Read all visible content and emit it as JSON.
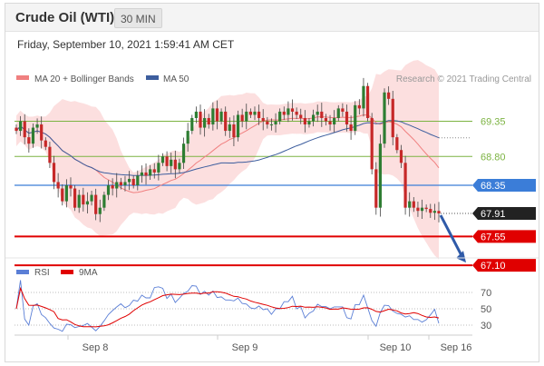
{
  "header": {
    "title": "Crude Oil (WTI)",
    "timeframe": "30 MIN",
    "timestamp": "Friday, September 10, 2021 1:59:41 AM CET"
  },
  "legend": {
    "ma20_label": "MA 20 + Bollinger Bands",
    "ma20_color": "#f08080",
    "ma50_label": "MA 50",
    "ma50_color": "#3d5e9e",
    "credit": "Research © 2021 Trading Central"
  },
  "price_levels": [
    {
      "value": 69.35,
      "label": "69.35",
      "kind": "resistance",
      "color": "#7cb342"
    },
    {
      "value": 68.8,
      "label": "68.80",
      "kind": "resistance",
      "color": "#7cb342"
    },
    {
      "value": 68.35,
      "label": "68.35",
      "kind": "pivot",
      "color": "#3b7dd8"
    },
    {
      "value": 67.91,
      "label": "67.91",
      "kind": "last_price",
      "color": "#222222"
    },
    {
      "value": 67.55,
      "label": "67.55",
      "kind": "support",
      "color": "#e00000"
    },
    {
      "value": 67.1,
      "label": "67.10",
      "kind": "support",
      "color": "#e00000"
    }
  ],
  "rsi_legend": {
    "rsi_label": "RSI",
    "rsi_color": "#5b7fd6",
    "ma_label": "9MA",
    "ma_color": "#e00000"
  },
  "rsi_levels": [
    "70",
    "50",
    "30"
  ],
  "x_axis": [
    "Sep 8",
    "Sep 9",
    "Sep 10",
    "Sep 16"
  ],
  "chart_data": {
    "type": "candlestick",
    "timeframe": "30 MIN",
    "x_labels": [
      "Sep 8",
      "Sep 9",
      "Sep 10",
      "Sep 16"
    ],
    "price_levels": [
      69.35,
      68.8,
      68.35,
      67.91,
      67.55,
      67.1
    ],
    "last_price": 67.91,
    "close": [
      69.2,
      69.35,
      69.1,
      69.0,
      69.25,
      69.3,
      69.05,
      68.95,
      68.7,
      68.4,
      68.3,
      68.1,
      68.35,
      68.3,
      68.0,
      68.2,
      68.05,
      68.1,
      68.2,
      67.9,
      68.0,
      68.2,
      68.35,
      68.3,
      68.4,
      68.35,
      68.4,
      68.45,
      68.35,
      68.5,
      68.55,
      68.5,
      68.6,
      68.55,
      68.7,
      68.8,
      68.65,
      68.75,
      68.6,
      68.7,
      69.0,
      69.2,
      69.4,
      69.5,
      69.25,
      69.4,
      69.3,
      69.55,
      69.35,
      69.5,
      69.2,
      69.3,
      69.1,
      69.45,
      69.35,
      69.5,
      69.45,
      69.5,
      69.4,
      69.35,
      69.3,
      69.3,
      69.35,
      69.5,
      69.45,
      69.55,
      69.5,
      69.45,
      69.4,
      69.3,
      69.35,
      69.45,
      69.5,
      69.4,
      69.35,
      69.3,
      69.4,
      69.55,
      69.5,
      69.3,
      69.2,
      69.6,
      69.55,
      69.9,
      69.4,
      68.6,
      68.0,
      69.0,
      69.8,
      69.7,
      69.1,
      68.9,
      68.7,
      68.0,
      68.1,
      68.0,
      67.95,
      68.0,
      67.98,
      67.92,
      67.95,
      67.91
    ]
  }
}
